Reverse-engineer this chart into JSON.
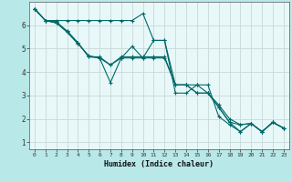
{
  "xlabel": "Humidex (Indice chaleur)",
  "background_color": "#b8e8e8",
  "plot_bg_color": "#e8f8f8",
  "grid_color": "#c8d8d8",
  "line_color": "#006868",
  "xlim": [
    -0.5,
    23.5
  ],
  "ylim": [
    0.7,
    7.0
  ],
  "yticks": [
    1,
    2,
    3,
    4,
    5,
    6
  ],
  "xticks": [
    0,
    1,
    2,
    3,
    4,
    5,
    6,
    7,
    8,
    9,
    10,
    11,
    12,
    13,
    14,
    15,
    16,
    17,
    18,
    19,
    20,
    21,
    22,
    23
  ],
  "lines": [
    {
      "x": [
        0,
        1,
        2,
        3,
        4,
        5,
        6,
        7,
        8,
        9,
        10,
        11,
        12,
        13,
        14,
        15,
        16,
        17,
        18,
        19,
        20,
        21,
        22,
        23
      ],
      "y": [
        6.7,
        6.2,
        6.2,
        6.2,
        6.2,
        6.2,
        6.2,
        6.2,
        6.2,
        6.2,
        6.5,
        5.35,
        5.35,
        3.1,
        3.1,
        3.45,
        3.45,
        2.1,
        1.75,
        1.45,
        1.8,
        1.45,
        1.85,
        1.6
      ],
      "markers": [
        0,
        1,
        2,
        9,
        10,
        11,
        12,
        13,
        14,
        15,
        16,
        17,
        18,
        19,
        20,
        21,
        22,
        23
      ]
    },
    {
      "x": [
        0,
        1,
        2,
        3,
        4,
        5,
        6,
        7,
        8,
        9,
        10,
        11,
        12,
        13,
        14,
        15,
        16,
        17,
        18,
        19,
        20,
        21,
        22,
        23
      ],
      "y": [
        6.7,
        6.2,
        6.1,
        5.7,
        5.2,
        4.7,
        4.6,
        3.55,
        4.6,
        5.1,
        4.6,
        5.35,
        5.35,
        3.45,
        3.45,
        3.45,
        3.1,
        2.5,
        1.85,
        1.45,
        1.8,
        1.45,
        1.85,
        1.6
      ],
      "markers": [
        0,
        1,
        2,
        3,
        4,
        5,
        6,
        7,
        8,
        9,
        10,
        11,
        12,
        13,
        14,
        15,
        16,
        17,
        18,
        19,
        20,
        21,
        22,
        23
      ]
    },
    {
      "x": [
        0,
        1,
        2,
        3,
        4,
        5,
        6,
        7,
        8,
        9,
        10,
        11,
        12,
        13,
        14,
        15,
        16,
        17,
        18,
        19,
        20,
        21,
        22,
        23
      ],
      "y": [
        6.7,
        6.2,
        6.1,
        5.75,
        5.25,
        4.65,
        4.6,
        4.3,
        4.6,
        4.6,
        4.6,
        4.6,
        4.6,
        3.45,
        3.45,
        3.1,
        3.1,
        2.5,
        1.85,
        1.75,
        1.8,
        1.45,
        1.85,
        1.6
      ],
      "markers": [
        0,
        1,
        2,
        3,
        4,
        5,
        6,
        7,
        8,
        9,
        10,
        11,
        12,
        13,
        14,
        15,
        16,
        17,
        18,
        19,
        20,
        21,
        22,
        23
      ]
    },
    {
      "x": [
        0,
        1,
        2,
        3,
        4,
        5,
        6,
        7,
        8,
        9,
        10,
        11,
        12,
        13,
        14,
        15,
        16,
        17,
        18,
        19,
        20,
        21,
        22,
        23
      ],
      "y": [
        6.7,
        6.2,
        6.15,
        5.75,
        5.25,
        4.65,
        4.65,
        4.3,
        4.65,
        4.65,
        4.65,
        4.65,
        4.65,
        3.45,
        3.45,
        3.1,
        3.1,
        2.6,
        2.0,
        1.75,
        1.8,
        1.45,
        1.85,
        1.6
      ],
      "markers": [
        0,
        1,
        2,
        3,
        4,
        5,
        6,
        7,
        8,
        9,
        10,
        11,
        12,
        13,
        14,
        15,
        16,
        17,
        18,
        19,
        20,
        21,
        22,
        23
      ]
    }
  ]
}
